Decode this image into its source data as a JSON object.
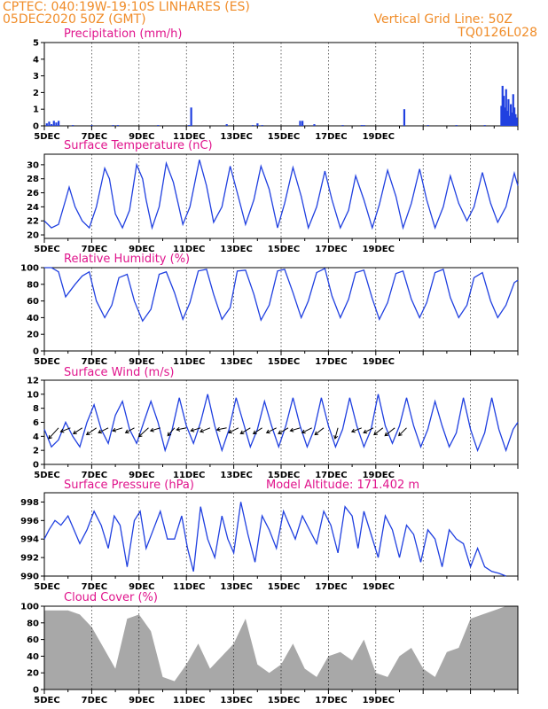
{
  "header": {
    "line1": "CPTEC:   040:19W-19:10S   LINHARES (ES)",
    "line2": "05DEC2020 50Z (GMT)",
    "grid_note": "Vertical Grid Line: 50Z",
    "code": "TQ0126L028"
  },
  "x_tick_labels": [
    "5DEC",
    "7DEC",
    "9DEC",
    "11DEC",
    "13DEC",
    "15DEC",
    "17DEC",
    "19DEC"
  ],
  "chart_data": [
    {
      "id": "precip",
      "type": "bar",
      "title": "Precipitation (mm/h)",
      "ylim": [
        0,
        5
      ],
      "yticks": [
        0,
        1,
        2,
        3,
        4,
        5
      ],
      "series": [
        {
          "name": "precipitation",
          "color": "#2040e0",
          "x": [
            0.1,
            0.2,
            0.3,
            0.4,
            0.5,
            0.6,
            1.2,
            2.0,
            2.9,
            3.1,
            4.8,
            6.1,
            6.2,
            7.7,
            8.8,
            9.0,
            9.2,
            10.8,
            10.9,
            11.4,
            12.6,
            13.4,
            13.5,
            15.2,
            16.2,
            17.4,
            18.6,
            19.3,
            19.35,
            19.4,
            19.45,
            19.5,
            19.55,
            19.6,
            19.65,
            19.7,
            19.75,
            19.8,
            19.85,
            19.9,
            19.95
          ],
          "values": [
            0.15,
            0.25,
            0.1,
            0.3,
            0.2,
            0.3,
            0.05,
            0.05,
            0.05,
            0.05,
            0.05,
            0.05,
            1.1,
            0.1,
            0.05,
            0.15,
            0.05,
            0.3,
            0.3,
            0.1,
            0.05,
            0.05,
            0.05,
            1.0,
            0.05,
            0.05,
            0.05,
            1.2,
            2.4,
            1.8,
            1.1,
            2.2,
            0.9,
            1.6,
            0.6,
            1.3,
            0.8,
            1.9,
            1.1,
            0.7,
            0.5
          ]
        }
      ]
    },
    {
      "id": "temp",
      "type": "line",
      "title": "Surface Temperature (nC)",
      "ylim": [
        19.5,
        31.5
      ],
      "yticks": [
        20,
        22,
        24,
        26,
        28,
        30
      ],
      "series": [
        {
          "name": "temperature",
          "color": "#2040e0",
          "x": [
            0,
            0.3,
            0.6,
            0.9,
            1.05,
            1.3,
            1.6,
            1.9,
            2.2,
            2.55,
            2.75,
            3.0,
            3.3,
            3.6,
            3.9,
            4.15,
            4.3,
            4.55,
            4.85,
            5.15,
            5.45,
            5.85,
            6.15,
            6.55,
            6.85,
            7.15,
            7.5,
            7.85,
            8.15,
            8.5,
            8.85,
            9.15,
            9.5,
            9.85,
            10.15,
            10.5,
            10.85,
            11.15,
            11.5,
            11.85,
            12.15,
            12.5,
            12.85,
            13.15,
            13.5,
            13.85,
            14.15,
            14.5,
            14.85,
            15.15,
            15.5,
            15.85,
            16.15,
            16.5,
            16.85,
            17.15,
            17.5,
            17.85,
            18.15,
            18.5,
            18.85,
            19.15,
            19.5,
            19.85,
            20.0
          ],
          "values": [
            22,
            21,
            21.5,
            25,
            26.8,
            24,
            22,
            21,
            24,
            29.5,
            28,
            23,
            21,
            23.5,
            30,
            28,
            25,
            21,
            24,
            30.2,
            27.5,
            21.5,
            24,
            30.7,
            27,
            21.8,
            24,
            29.8,
            26,
            21.5,
            25,
            29.8,
            26.5,
            21,
            24.5,
            29.6,
            25.5,
            21,
            24,
            29.1,
            25,
            21,
            23.5,
            28.4,
            25,
            21,
            24.3,
            29.2,
            25.5,
            21,
            24.5,
            29.4,
            25,
            21,
            24,
            28.4,
            24.5,
            22,
            24,
            28.9,
            24.5,
            21.8,
            24,
            28.8,
            27
          ]
        }
      ]
    },
    {
      "id": "rh",
      "type": "line",
      "title": "Relative Humidity (%)",
      "ylim": [
        0,
        100
      ],
      "yticks": [
        0,
        20,
        40,
        60,
        80,
        100
      ],
      "series": [
        {
          "name": "humidity",
          "color": "#2040e0",
          "x": [
            0,
            0.3,
            0.6,
            0.9,
            1.3,
            1.6,
            1.9,
            2.2,
            2.55,
            2.85,
            3.15,
            3.5,
            3.8,
            4.15,
            4.5,
            4.85,
            5.15,
            5.5,
            5.85,
            6.15,
            6.5,
            6.85,
            7.15,
            7.5,
            7.85,
            8.15,
            8.5,
            8.85,
            9.15,
            9.5,
            9.85,
            10.15,
            10.5,
            10.85,
            11.15,
            11.5,
            11.85,
            12.15,
            12.5,
            12.85,
            13.15,
            13.5,
            13.85,
            14.15,
            14.5,
            14.85,
            15.15,
            15.5,
            15.85,
            16.15,
            16.5,
            16.85,
            17.15,
            17.5,
            17.85,
            18.15,
            18.5,
            18.85,
            19.15,
            19.5,
            19.85,
            20.0
          ],
          "values": [
            100,
            100,
            95,
            65,
            80,
            90,
            95,
            60,
            40,
            55,
            88,
            92,
            60,
            36,
            50,
            92,
            95,
            70,
            38,
            58,
            96,
            98,
            68,
            38,
            52,
            96,
            97,
            68,
            37,
            55,
            96,
            98,
            70,
            40,
            60,
            94,
            99,
            66,
            40,
            62,
            94,
            97,
            63,
            38,
            58,
            93,
            96,
            62,
            40,
            58,
            94,
            98,
            64,
            40,
            55,
            88,
            94,
            60,
            40,
            55,
            82,
            85
          ]
        }
      ]
    },
    {
      "id": "wind",
      "type": "line",
      "title": "Surface Wind (m/s)",
      "ylim": [
        0,
        12
      ],
      "yticks": [
        0,
        2,
        4,
        6,
        8,
        10,
        12
      ],
      "series": [
        {
          "name": "wind speed",
          "color": "#2040e0",
          "x": [
            0,
            0.3,
            0.6,
            0.9,
            1.2,
            1.5,
            1.8,
            2.1,
            2.4,
            2.7,
            3.0,
            3.3,
            3.6,
            3.9,
            4.2,
            4.5,
            4.8,
            5.1,
            5.4,
            5.7,
            6.0,
            6.3,
            6.6,
            6.9,
            7.2,
            7.5,
            7.8,
            8.1,
            8.4,
            8.7,
            9.0,
            9.3,
            9.6,
            9.9,
            10.2,
            10.5,
            10.8,
            11.1,
            11.4,
            11.7,
            12.0,
            12.3,
            12.6,
            12.9,
            13.2,
            13.5,
            13.8,
            14.1,
            14.4,
            14.7,
            15.0,
            15.3,
            15.6,
            15.9,
            16.2,
            16.5,
            16.8,
            17.1,
            17.4,
            17.7,
            18.0,
            18.3,
            18.6,
            18.9,
            19.2,
            19.5,
            19.8,
            20.0
          ],
          "values": [
            5,
            2.5,
            3.5,
            6,
            4,
            2.5,
            6,
            8.5,
            5,
            3,
            7,
            9,
            5,
            3,
            6,
            9,
            6,
            2,
            5,
            9.5,
            5.5,
            3,
            6,
            10,
            5.5,
            2,
            5,
            9.5,
            6,
            2.5,
            5,
            9,
            5.5,
            2.5,
            5.5,
            9.5,
            5.5,
            2.5,
            5,
            9.5,
            5.5,
            2.5,
            5,
            9.5,
            5.5,
            2.5,
            5,
            10,
            5.5,
            3,
            5.5,
            9.5,
            5.5,
            2.5,
            5,
            9,
            5.5,
            2.5,
            4.5,
            9.5,
            5,
            2,
            4.5,
            9.5,
            5,
            2,
            5,
            6
          ]
        }
      ],
      "vectors": [
        {
          "x": 0.6,
          "u": -1,
          "v": -1.1
        },
        {
          "x": 1.1,
          "u": -1,
          "v": -0.4
        },
        {
          "x": 1.6,
          "u": -0.9,
          "v": -0.6
        },
        {
          "x": 2.2,
          "u": -1,
          "v": -0.7
        },
        {
          "x": 2.7,
          "u": -1,
          "v": -0.5
        },
        {
          "x": 3.3,
          "u": -1,
          "v": -0.3
        },
        {
          "x": 3.8,
          "u": -0.9,
          "v": -0.5
        },
        {
          "x": 4.4,
          "u": -1,
          "v": -0.9
        },
        {
          "x": 4.9,
          "u": -1,
          "v": -0.3
        },
        {
          "x": 5.5,
          "u": -0.7,
          "v": -0.8
        },
        {
          "x": 6.0,
          "u": -1,
          "v": -0.2
        },
        {
          "x": 6.6,
          "u": -1,
          "v": -0.3
        },
        {
          "x": 7.0,
          "u": -1,
          "v": -0.4
        },
        {
          "x": 7.7,
          "u": -1,
          "v": -0.2
        },
        {
          "x": 8.2,
          "u": -1,
          "v": -0.5
        },
        {
          "x": 8.7,
          "u": -1,
          "v": -0.6
        },
        {
          "x": 9.2,
          "u": -0.9,
          "v": -0.6
        },
        {
          "x": 9.8,
          "u": -1,
          "v": -0.5
        },
        {
          "x": 10.3,
          "u": -1,
          "v": -0.6
        },
        {
          "x": 10.8,
          "u": -1,
          "v": -0.3
        },
        {
          "x": 11.3,
          "u": -1,
          "v": -0.5
        },
        {
          "x": 11.8,
          "u": -0.9,
          "v": -0.7
        },
        {
          "x": 12.4,
          "u": -0.3,
          "v": -1.1
        },
        {
          "x": 13.4,
          "u": -1,
          "v": -0.4
        },
        {
          "x": 13.9,
          "u": -1,
          "v": -0.5
        },
        {
          "x": 14.3,
          "u": -0.9,
          "v": -0.7
        },
        {
          "x": 14.8,
          "u": -1,
          "v": -0.8
        },
        {
          "x": 15.3,
          "u": -0.8,
          "v": -0.8
        }
      ]
    },
    {
      "id": "pressure",
      "type": "line",
      "title": "Surface Pressure (hPa)",
      "extra_label": "Model Altitude: 171.402  m",
      "ylim": [
        990,
        999
      ],
      "yticks": [
        990,
        992,
        994,
        996,
        998
      ],
      "series": [
        {
          "name": "pressure",
          "color": "#2040e0",
          "x": [
            0,
            0.2,
            0.45,
            0.7,
            1.0,
            1.25,
            1.5,
            1.8,
            2.1,
            2.4,
            2.7,
            2.95,
            3.2,
            3.5,
            3.8,
            4.05,
            4.3,
            4.6,
            4.9,
            5.2,
            5.5,
            5.8,
            6.05,
            6.3,
            6.6,
            6.9,
            7.2,
            7.5,
            7.75,
            8.0,
            8.3,
            8.6,
            8.9,
            9.2,
            9.5,
            9.8,
            10.1,
            10.35,
            10.6,
            10.9,
            11.2,
            11.5,
            11.8,
            12.1,
            12.4,
            12.7,
            13.0,
            13.25,
            13.5,
            13.8,
            14.1,
            14.4,
            14.7,
            15.0,
            15.3,
            15.6,
            15.9,
            16.2,
            16.5,
            16.8,
            17.1,
            17.4,
            17.7,
            18.0,
            18.3,
            18.6,
            18.9,
            19.2,
            19.5
          ],
          "values": [
            994,
            995,
            996,
            995.5,
            996.5,
            995,
            993.5,
            995,
            997,
            995.5,
            993,
            996.5,
            995.5,
            991,
            996,
            997,
            993,
            995,
            997,
            994,
            994,
            996.5,
            993,
            990.5,
            997.5,
            994,
            992,
            996.5,
            994,
            992.5,
            998,
            994.5,
            991.5,
            996.5,
            995,
            993,
            997,
            995.5,
            994,
            996.5,
            995,
            993.5,
            997,
            995.5,
            992.5,
            997.5,
            996.5,
            993,
            997,
            994.5,
            992,
            996.5,
            995,
            992,
            995.5,
            994.5,
            991.5,
            995,
            994,
            991,
            995,
            994,
            993.5,
            991,
            993,
            991,
            990.5,
            990.3,
            990
          ]
        }
      ]
    },
    {
      "id": "cloud",
      "type": "area",
      "title": "Cloud Cover (%)",
      "ylim": [
        0,
        100
      ],
      "yticks": [
        0,
        20,
        40,
        60,
        80,
        100
      ],
      "series": [
        {
          "name": "cloud cover",
          "color": "#a8a8a8",
          "x": [
            0,
            0.5,
            1.0,
            1.5,
            2.0,
            2.5,
            3.0,
            3.5,
            4.0,
            4.5,
            5.0,
            5.5,
            6.0,
            6.5,
            7.0,
            7.5,
            8.0,
            8.5,
            9.0,
            9.5,
            10.0,
            10.5,
            11.0,
            11.5,
            12.0,
            12.5,
            13.0,
            13.5,
            14.0,
            14.5,
            15.0,
            15.5,
            16.0,
            16.5,
            17.0,
            17.5,
            18.0,
            18.5,
            19.0,
            19.5,
            20.0
          ],
          "values": [
            95,
            95,
            95,
            90,
            75,
            50,
            25,
            85,
            90,
            70,
            15,
            10,
            30,
            55,
            25,
            40,
            55,
            85,
            30,
            20,
            30,
            55,
            25,
            15,
            40,
            45,
            35,
            60,
            20,
            15,
            40,
            50,
            25,
            15,
            45,
            50,
            85,
            90,
            95,
            100,
            100
          ]
        }
      ]
    }
  ]
}
